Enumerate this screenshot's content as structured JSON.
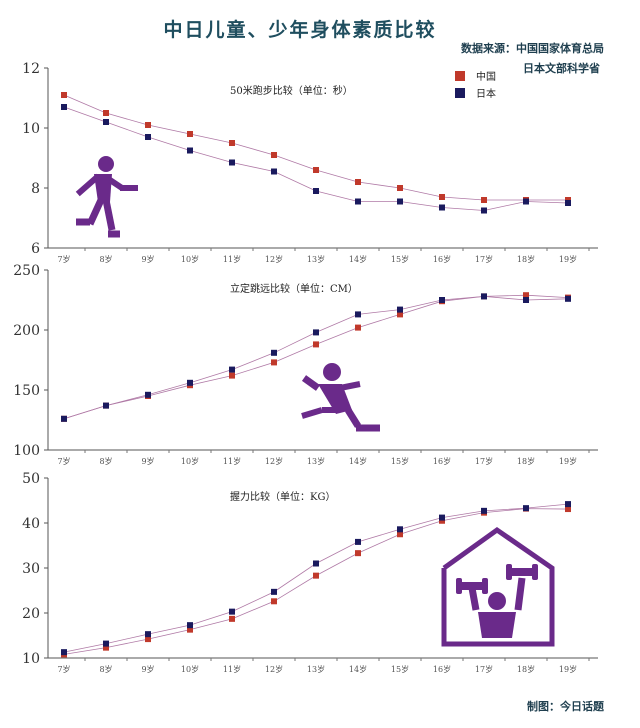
{
  "header": {
    "title": "中日儿童、少年身体素质比较",
    "source_line1": "数据来源：中国国家体育总局",
    "source_line2": "日本文部科学省",
    "credit": "制图：今日话题"
  },
  "colors": {
    "china": "#c0392b",
    "japan": "#1a1a5e",
    "icon": "#6a2a8a"
  },
  "icons": [
    "runner-icon",
    "long-jumper-icon",
    "weightlifter-house-icon"
  ],
  "chart_data": [
    {
      "type": "line",
      "title": "50米跑步比较（单位：秒）",
      "categories": [
        "7岁",
        "8岁",
        "9岁",
        "10岁",
        "11岁",
        "12岁",
        "13岁",
        "14岁",
        "15岁",
        "16岁",
        "17岁",
        "18岁",
        "19岁"
      ],
      "ylim": [
        6,
        12
      ],
      "yticks": [
        6,
        8,
        10,
        12
      ],
      "legend": "top-right",
      "series": [
        {
          "name": "中国",
          "values": [
            11.1,
            10.5,
            10.1,
            9.8,
            9.5,
            9.1,
            8.6,
            8.2,
            8.0,
            7.7,
            7.6,
            7.6,
            7.6
          ]
        },
        {
          "name": "日本",
          "values": [
            10.7,
            10.2,
            9.7,
            9.25,
            8.85,
            8.55,
            7.9,
            7.55,
            7.55,
            7.35,
            7.25,
            7.55,
            7.5
          ]
        }
      ]
    },
    {
      "type": "line",
      "title": "立定跳远比较（单位：CM）",
      "categories": [
        "7岁",
        "8岁",
        "9岁",
        "10岁",
        "11岁",
        "12岁",
        "13岁",
        "14岁",
        "15岁",
        "16岁",
        "17岁",
        "18岁",
        "19岁"
      ],
      "ylim": [
        100,
        250
      ],
      "yticks": [
        100,
        150,
        200,
        250
      ],
      "series": [
        {
          "name": "中国",
          "values": [
            126,
            137,
            145,
            154,
            162,
            173,
            188,
            202,
            213,
            224,
            228,
            229,
            227
          ]
        },
        {
          "name": "日本",
          "values": [
            126,
            137,
            146,
            156,
            167,
            181,
            198,
            213,
            217,
            225,
            228,
            225,
            226
          ]
        }
      ]
    },
    {
      "type": "line",
      "title": "握力比较（单位：KG）",
      "categories": [
        "7岁",
        "8岁",
        "9岁",
        "10岁",
        "11岁",
        "12岁",
        "13岁",
        "14岁",
        "15岁",
        "16岁",
        "17岁",
        "18岁",
        "19岁"
      ],
      "ylim": [
        10,
        50
      ],
      "yticks": [
        10,
        20,
        30,
        40,
        50
      ],
      "series": [
        {
          "name": "中国",
          "values": [
            10.8,
            12.3,
            14.2,
            16.3,
            18.7,
            22.6,
            28.3,
            33.3,
            37.5,
            40.5,
            42.3,
            43.2,
            43.1
          ]
        },
        {
          "name": "日本",
          "values": [
            11.3,
            13.2,
            15.3,
            17.3,
            20.3,
            24.7,
            31.0,
            35.8,
            38.6,
            41.2,
            42.7,
            43.3,
            44.2
          ]
        }
      ]
    }
  ]
}
